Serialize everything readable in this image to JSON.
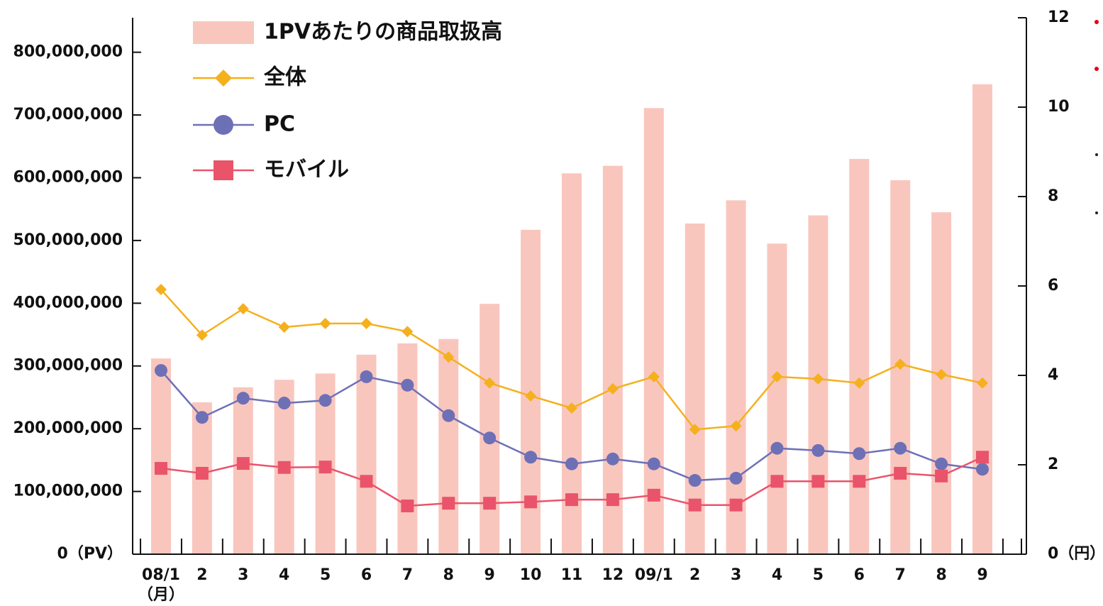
{
  "chart_data": {
    "type": "combo",
    "categories": [
      "08/1",
      "2",
      "3",
      "4",
      "5",
      "6",
      "7",
      "8",
      "9",
      "10",
      "11",
      "12",
      "09/1",
      "2",
      "3",
      "4",
      "5",
      "6",
      "7",
      "8",
      "9"
    ],
    "x_unit": "（月）",
    "series": [
      {
        "name": "1PVあたりの商品取扱高",
        "type": "bar",
        "axis": "y",
        "color": "#f9c6be",
        "values": [
          312000000,
          242000000,
          266000000,
          278000000,
          288000000,
          318000000,
          336000000,
          343000000,
          399000000,
          517000000,
          607000000,
          619000000,
          711000000,
          527000000,
          564000000,
          495000000,
          540000000,
          630000000,
          596000000,
          545000000,
          749000000
        ]
      },
      {
        "name": "全体",
        "type": "line",
        "marker": "diamond",
        "axis": "y2",
        "color": "#f5b01e",
        "values": [
          5.92,
          4.9,
          5.49,
          5.08,
          5.16,
          5.16,
          4.98,
          4.41,
          3.83,
          3.54,
          3.27,
          3.7,
          3.97,
          2.79,
          2.87,
          3.97,
          3.92,
          3.83,
          4.25,
          4.02,
          3.83
        ]
      },
      {
        "name": "PC",
        "type": "line",
        "marker": "circle",
        "axis": "y2",
        "color": "#6e70b6",
        "values": [
          4.11,
          3.06,
          3.49,
          3.38,
          3.44,
          3.97,
          3.78,
          3.1,
          2.6,
          2.17,
          2.02,
          2.13,
          2.02,
          1.65,
          1.7,
          2.37,
          2.32,
          2.25,
          2.37,
          2.02,
          1.9
        ]
      },
      {
        "name": "モバイル",
        "type": "line",
        "marker": "square",
        "axis": "y2",
        "color": "#e9546b",
        "values": [
          1.92,
          1.81,
          2.03,
          1.94,
          1.95,
          1.63,
          1.08,
          1.14,
          1.14,
          1.17,
          1.22,
          1.22,
          1.32,
          1.1,
          1.1,
          1.63,
          1.63,
          1.63,
          1.81,
          1.75,
          2.17
        ]
      }
    ],
    "ylim": [
      0,
      855000000
    ],
    "yticks": [
      {
        "value": 0,
        "label": "0（PV）"
      },
      {
        "value": 100000000,
        "label": "100,000,000"
      },
      {
        "value": 200000000,
        "label": "200,000,000"
      },
      {
        "value": 300000000,
        "label": "300,000,000"
      },
      {
        "value": 400000000,
        "label": "400,000,000"
      },
      {
        "value": 500000000,
        "label": "500,000,000"
      },
      {
        "value": 600000000,
        "label": "600,000,000"
      },
      {
        "value": 700000000,
        "label": "700,000,000"
      },
      {
        "value": 800000000,
        "label": "800,000,000"
      }
    ],
    "y2lim": [
      0,
      12
    ],
    "y2ticks": [
      {
        "value": 0,
        "label": "0（円）"
      },
      2,
      4,
      6,
      8,
      10,
      12
    ],
    "grid": false
  }
}
